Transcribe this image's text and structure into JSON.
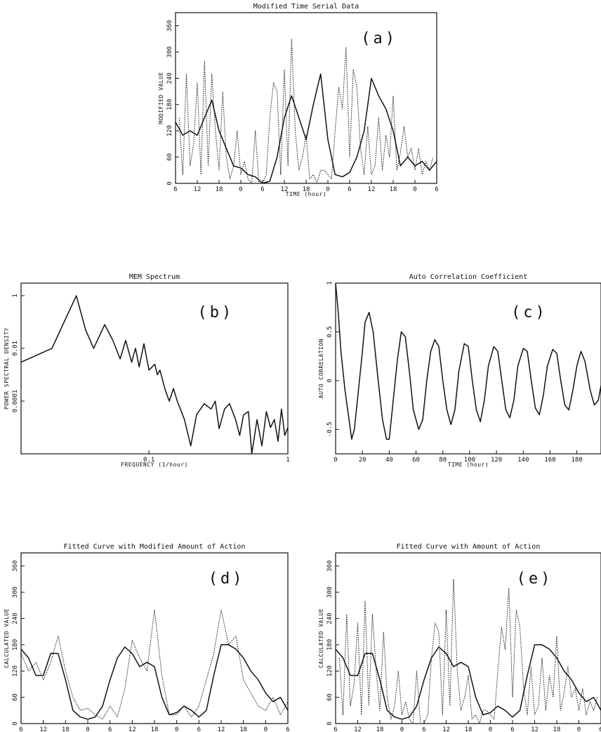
{
  "chart_data": [
    {
      "id": "a",
      "type": "line",
      "title": "Modified Time Serial Data",
      "panel_label": "(a)",
      "xlabel": "TIME (hour)",
      "ylabel": "MODIFIED VALUE",
      "x_tick_labels": [
        "6",
        "12",
        "18",
        "0",
        "6",
        "12",
        "18",
        "0",
        "6",
        "12",
        "18",
        "0",
        "6"
      ],
      "yticks": [
        0,
        60,
        120,
        180,
        240,
        300,
        360
      ],
      "xlim": [
        6,
        78
      ],
      "ylim": [
        0,
        390
      ],
      "series": [
        {
          "style": "dotted",
          "x": [
            7,
            8,
            9,
            10,
            11,
            12,
            13,
            14,
            15,
            16,
            17,
            18,
            19,
            20,
            21,
            22,
            23,
            24,
            25,
            26,
            27,
            28,
            29,
            30,
            31,
            32,
            33,
            34,
            35,
            36,
            37,
            38,
            39,
            40,
            41,
            42,
            43,
            44,
            45,
            46,
            47,
            48,
            49,
            50,
            51,
            52,
            53,
            54,
            55,
            56,
            57,
            58,
            59,
            60,
            61,
            62,
            63,
            64,
            65,
            66,
            67,
            68,
            69,
            70,
            71,
            72,
            73,
            74,
            75,
            76,
            77
          ],
          "y": [
            150,
            20,
            250,
            40,
            90,
            230,
            20,
            280,
            40,
            250,
            120,
            30,
            210,
            60,
            10,
            40,
            120,
            20,
            50,
            10,
            0,
            120,
            0,
            0,
            20,
            150,
            230,
            210,
            20,
            260,
            40,
            330,
            120,
            30,
            60,
            110,
            10,
            20,
            0,
            30,
            30,
            20,
            10,
            120,
            220,
            170,
            310,
            60,
            260,
            220,
            80,
            20,
            130,
            20,
            40,
            150,
            30,
            110,
            60,
            200,
            30,
            70,
            130,
            60,
            80,
            30,
            80,
            20,
            50,
            30,
            60
          ]
        },
        {
          "style": "solid",
          "x": [
            6,
            8,
            10,
            12,
            14,
            16,
            18,
            20,
            22,
            24,
            26,
            28,
            30,
            32,
            34,
            36,
            38,
            40,
            42,
            44,
            46,
            48,
            50,
            52,
            54,
            56,
            58,
            60,
            62,
            64,
            66,
            68,
            70,
            72,
            74,
            76,
            78
          ],
          "y": [
            140,
            110,
            120,
            110,
            150,
            190,
            120,
            80,
            40,
            35,
            20,
            15,
            0,
            5,
            60,
            150,
            200,
            150,
            100,
            180,
            250,
            100,
            20,
            15,
            25,
            60,
            120,
            240,
            200,
            170,
            120,
            40,
            60,
            40,
            50,
            30,
            50
          ]
        }
      ]
    },
    {
      "id": "b",
      "type": "line",
      "title": "MEM Spectrum",
      "panel_label": "(b)",
      "xlabel": "FREQUENCY (1/hour)",
      "ylabel": "POWER SPECTRAL DENSITY",
      "x_tick_labels": [
        "0.1",
        "1"
      ],
      "y_tick_labels": [
        "1",
        "0.01",
        "0.0001"
      ],
      "xscale": "log",
      "yscale": "log",
      "xlim": [
        0.012,
        1.0
      ],
      "ylim": [
        1e-06,
        3.0
      ],
      "series": [
        {
          "style": "solid",
          "x": [
            0.012,
            0.02,
            0.03,
            0.035,
            0.04,
            0.048,
            0.055,
            0.062,
            0.068,
            0.075,
            0.08,
            0.085,
            0.092,
            0.1,
            0.11,
            0.115,
            0.12,
            0.13,
            0.14,
            0.15,
            0.16,
            0.18,
            0.2,
            0.22,
            0.25,
            0.28,
            0.3,
            0.32,
            0.35,
            0.38,
            0.42,
            0.45,
            0.48,
            0.52,
            0.55,
            0.6,
            0.65,
            0.7,
            0.75,
            0.8,
            0.85,
            0.9,
            0.95,
            1.0
          ],
          "y": [
            0.003,
            0.01,
            1.0,
            0.05,
            0.01,
            0.08,
            0.02,
            0.004,
            0.02,
            0.003,
            0.01,
            0.002,
            0.015,
            0.0015,
            0.0025,
            0.001,
            0.0015,
            0.0003,
            0.0001,
            0.0003,
            0.0001,
            2e-05,
            2e-06,
            3e-05,
            8e-05,
            5e-05,
            0.0001,
            9e-06,
            5e-05,
            8e-05,
            2e-05,
            5e-06,
            3e-05,
            4e-05,
            1e-06,
            2e-05,
            2e-06,
            4e-05,
            1e-05,
            2e-05,
            3e-06,
            5e-05,
            5e-06,
            1e-05
          ]
        }
      ]
    },
    {
      "id": "c",
      "type": "line",
      "title": "Auto Correlation Coefficient",
      "panel_label": "(c)",
      "xlabel": "TIME (hour)",
      "ylabel": "AUTO CORRELATION",
      "xticks": [
        0,
        20,
        40,
        60,
        80,
        100,
        120,
        140,
        160,
        180
      ],
      "y_tick_labels": [
        "-0.5",
        "0",
        "0.5",
        "1"
      ],
      "xlim": [
        0,
        198
      ],
      "ylim": [
        -0.75,
        1.0
      ],
      "series": [
        {
          "style": "solid",
          "x": [
            0,
            2,
            4,
            7,
            10,
            12,
            14,
            17,
            20,
            22,
            25,
            28,
            31,
            35,
            38,
            40,
            43,
            46,
            49,
            52,
            55,
            58,
            62,
            65,
            68,
            71,
            74,
            77,
            80,
            83,
            86,
            89,
            92,
            96,
            99,
            102,
            105,
            108,
            111,
            114,
            118,
            121,
            124,
            127,
            130,
            133,
            136,
            140,
            143,
            146,
            149,
            152,
            155,
            158,
            162,
            165,
            168,
            171,
            174,
            177,
            180,
            183,
            186,
            190,
            193,
            196,
            198
          ],
          "y": [
            1.0,
            0.7,
            0.3,
            -0.1,
            -0.4,
            -0.6,
            -0.5,
            -0.1,
            0.3,
            0.6,
            0.7,
            0.5,
            0.1,
            -0.4,
            -0.6,
            -0.6,
            -0.2,
            0.2,
            0.5,
            0.45,
            0.1,
            -0.3,
            -0.5,
            -0.4,
            0.0,
            0.3,
            0.42,
            0.35,
            0.0,
            -0.3,
            -0.45,
            -0.3,
            0.1,
            0.38,
            0.35,
            0.0,
            -0.3,
            -0.42,
            -0.2,
            0.15,
            0.35,
            0.3,
            0.0,
            -0.3,
            -0.38,
            -0.2,
            0.15,
            0.33,
            0.3,
            0.0,
            -0.28,
            -0.35,
            -0.15,
            0.15,
            0.32,
            0.28,
            0.0,
            -0.25,
            -0.3,
            -0.1,
            0.15,
            0.3,
            0.2,
            -0.1,
            -0.25,
            -0.2,
            -0.05
          ]
        }
      ]
    },
    {
      "id": "d",
      "type": "line",
      "title": "Fitted Curve with Modified Amount of Action",
      "panel_label": "(d)",
      "xlabel": "TIME (hour)",
      "ylabel": "CALCULATED VALUE",
      "x_tick_labels": [
        "6",
        "12",
        "18",
        "0",
        "6",
        "12",
        "18",
        "0",
        "6",
        "12",
        "18",
        "0",
        "6"
      ],
      "yticks": [
        0,
        60,
        120,
        180,
        240,
        300,
        360
      ],
      "xlim": [
        6,
        78
      ],
      "ylim": [
        0,
        390
      ],
      "series": [
        {
          "style": "dotted",
          "x": [
            6,
            8,
            10,
            12,
            14,
            16,
            18,
            20,
            22,
            24,
            26,
            28,
            30,
            32,
            34,
            36,
            38,
            40,
            42,
            44,
            46,
            48,
            50,
            52,
            54,
            56,
            58,
            60,
            62,
            64,
            66,
            68,
            70,
            72,
            74,
            76,
            78
          ],
          "y": [
            160,
            120,
            140,
            100,
            140,
            200,
            120,
            60,
            30,
            35,
            20,
            10,
            40,
            15,
            80,
            190,
            150,
            120,
            260,
            110,
            20,
            20,
            40,
            15,
            40,
            100,
            160,
            260,
            180,
            200,
            100,
            70,
            40,
            30,
            60,
            20,
            50
          ]
        },
        {
          "style": "solid",
          "x": [
            6,
            8,
            10,
            12,
            14,
            16,
            18,
            20,
            22,
            24,
            26,
            28,
            30,
            32,
            34,
            36,
            38,
            40,
            42,
            44,
            46,
            48,
            50,
            52,
            54,
            56,
            58,
            60,
            62,
            64,
            66,
            68,
            70,
            72,
            74,
            76,
            78
          ],
          "y": [
            170,
            150,
            110,
            110,
            160,
            160,
            100,
            30,
            15,
            10,
            15,
            40,
            100,
            150,
            175,
            160,
            130,
            140,
            130,
            60,
            20,
            25,
            40,
            30,
            15,
            30,
            110,
            180,
            180,
            170,
            150,
            120,
            100,
            70,
            50,
            60,
            30
          ]
        }
      ]
    },
    {
      "id": "e",
      "type": "line",
      "title": "Fitted Curve with Amount of Action",
      "panel_label": "(e)",
      "xlabel": "TIME (hour)",
      "ylabel": "CALCULATED VALUE",
      "x_tick_labels": [
        "6",
        "12",
        "18",
        "0",
        "6",
        "12",
        "18",
        "0",
        "6",
        "12",
        "18",
        "0",
        "6"
      ],
      "yticks": [
        0,
        60,
        120,
        180,
        240,
        300,
        360
      ],
      "xlim": [
        6,
        78
      ],
      "ylim": [
        0,
        390
      ],
      "series": [
        {
          "style": "dotted",
          "x": [
            7,
            8,
            9,
            10,
            11,
            12,
            13,
            14,
            15,
            16,
            17,
            18,
            19,
            20,
            21,
            22,
            23,
            24,
            25,
            26,
            27,
            28,
            29,
            30,
            31,
            32,
            33,
            34,
            35,
            36,
            37,
            38,
            39,
            40,
            41,
            42,
            43,
            44,
            45,
            46,
            47,
            48,
            49,
            50,
            51,
            52,
            53,
            54,
            55,
            56,
            57,
            58,
            59,
            60,
            61,
            62,
            63,
            64,
            65,
            66,
            67,
            68,
            69,
            70,
            71,
            72,
            73,
            74,
            75,
            76,
            77
          ],
          "y": [
            150,
            20,
            250,
            40,
            90,
            230,
            20,
            280,
            40,
            250,
            120,
            30,
            210,
            60,
            10,
            40,
            120,
            20,
            50,
            10,
            0,
            120,
            0,
            0,
            20,
            150,
            230,
            210,
            20,
            260,
            40,
            330,
            120,
            30,
            60,
            110,
            10,
            20,
            0,
            30,
            30,
            20,
            10,
            120,
            220,
            170,
            310,
            60,
            260,
            220,
            80,
            20,
            130,
            20,
            40,
            150,
            30,
            110,
            60,
            200,
            30,
            70,
            130,
            60,
            80,
            30,
            80,
            20,
            50,
            30,
            60
          ]
        },
        {
          "style": "solid",
          "x": [
            6,
            8,
            10,
            12,
            14,
            16,
            18,
            20,
            22,
            24,
            26,
            28,
            30,
            32,
            34,
            36,
            38,
            40,
            42,
            44,
            46,
            48,
            50,
            52,
            54,
            56,
            58,
            60,
            62,
            64,
            66,
            68,
            70,
            72,
            74,
            76,
            78
          ],
          "y": [
            170,
            150,
            110,
            110,
            160,
            160,
            100,
            30,
            15,
            10,
            15,
            40,
            100,
            150,
            175,
            160,
            130,
            140,
            130,
            60,
            20,
            25,
            40,
            30,
            15,
            30,
            110,
            180,
            180,
            170,
            150,
            120,
            100,
            70,
            50,
            60,
            30
          ]
        }
      ]
    }
  ]
}
